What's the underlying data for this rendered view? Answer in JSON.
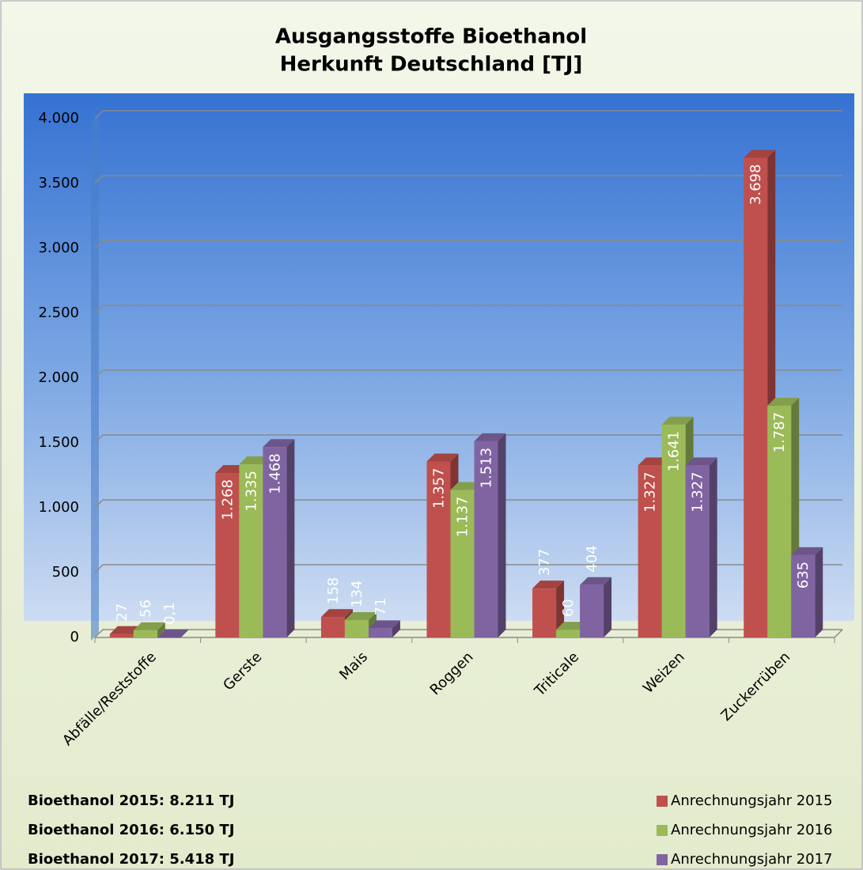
{
  "chart_data": {
    "type": "bar3d",
    "title": "Ausgangsstoffe Bioethanol",
    "subtitle": "Herkunft Deutschland [TJ]",
    "categories": [
      "Abfälle/Reststoffe",
      "Gerste",
      "Mais",
      "Roggen",
      "Triticale",
      "Weizen",
      "Zuckerrüben"
    ],
    "series": [
      {
        "name": "Anrechnungsjahr 2015",
        "color": "#c0504d",
        "values": [
          27,
          1268,
          158,
          1357,
          377,
          1327,
          3698
        ],
        "value_labels": [
          "27",
          "1.268",
          "158",
          "1.357",
          "377",
          "1.327",
          "3.698"
        ]
      },
      {
        "name": "Anrechnungsjahr 2016",
        "color": "#9bbb59",
        "values": [
          56,
          1335,
          134,
          1137,
          60,
          1641,
          1787
        ],
        "value_labels": [
          "56",
          "1.335",
          "134",
          "1.137",
          "60",
          "1.641",
          "1.787"
        ]
      },
      {
        "name": "Anrechnungsjahr 2017",
        "color": "#8064a2",
        "values": [
          0.1,
          1468,
          71,
          1513,
          404,
          1327,
          635
        ],
        "value_labels": [
          "0,1",
          "1.468",
          "71",
          "1.513",
          "404",
          "1.327",
          "635"
        ]
      }
    ],
    "ylim": [
      0,
      4000
    ],
    "yticks": [
      0,
      500,
      {
        "value": 1000,
        "label": "1.000"
      },
      {
        "value": 1500,
        "label": "1.500"
      },
      {
        "value": 2000,
        "label": "2.000"
      },
      {
        "value": 2500,
        "label": "2.500"
      },
      {
        "value": 3000,
        "label": "3.000"
      },
      {
        "value": 3500,
        "label": "3.500"
      },
      {
        "value": 4000,
        "label": "4.000"
      }
    ],
    "grid": true,
    "legend": "bottom-right",
    "annotations": [
      "Bioethanol 2015: 8.211 TJ",
      "Bioethanol 2016: 6.150 TJ",
      "Bioethanol 2017: 5.418 TJ"
    ]
  }
}
